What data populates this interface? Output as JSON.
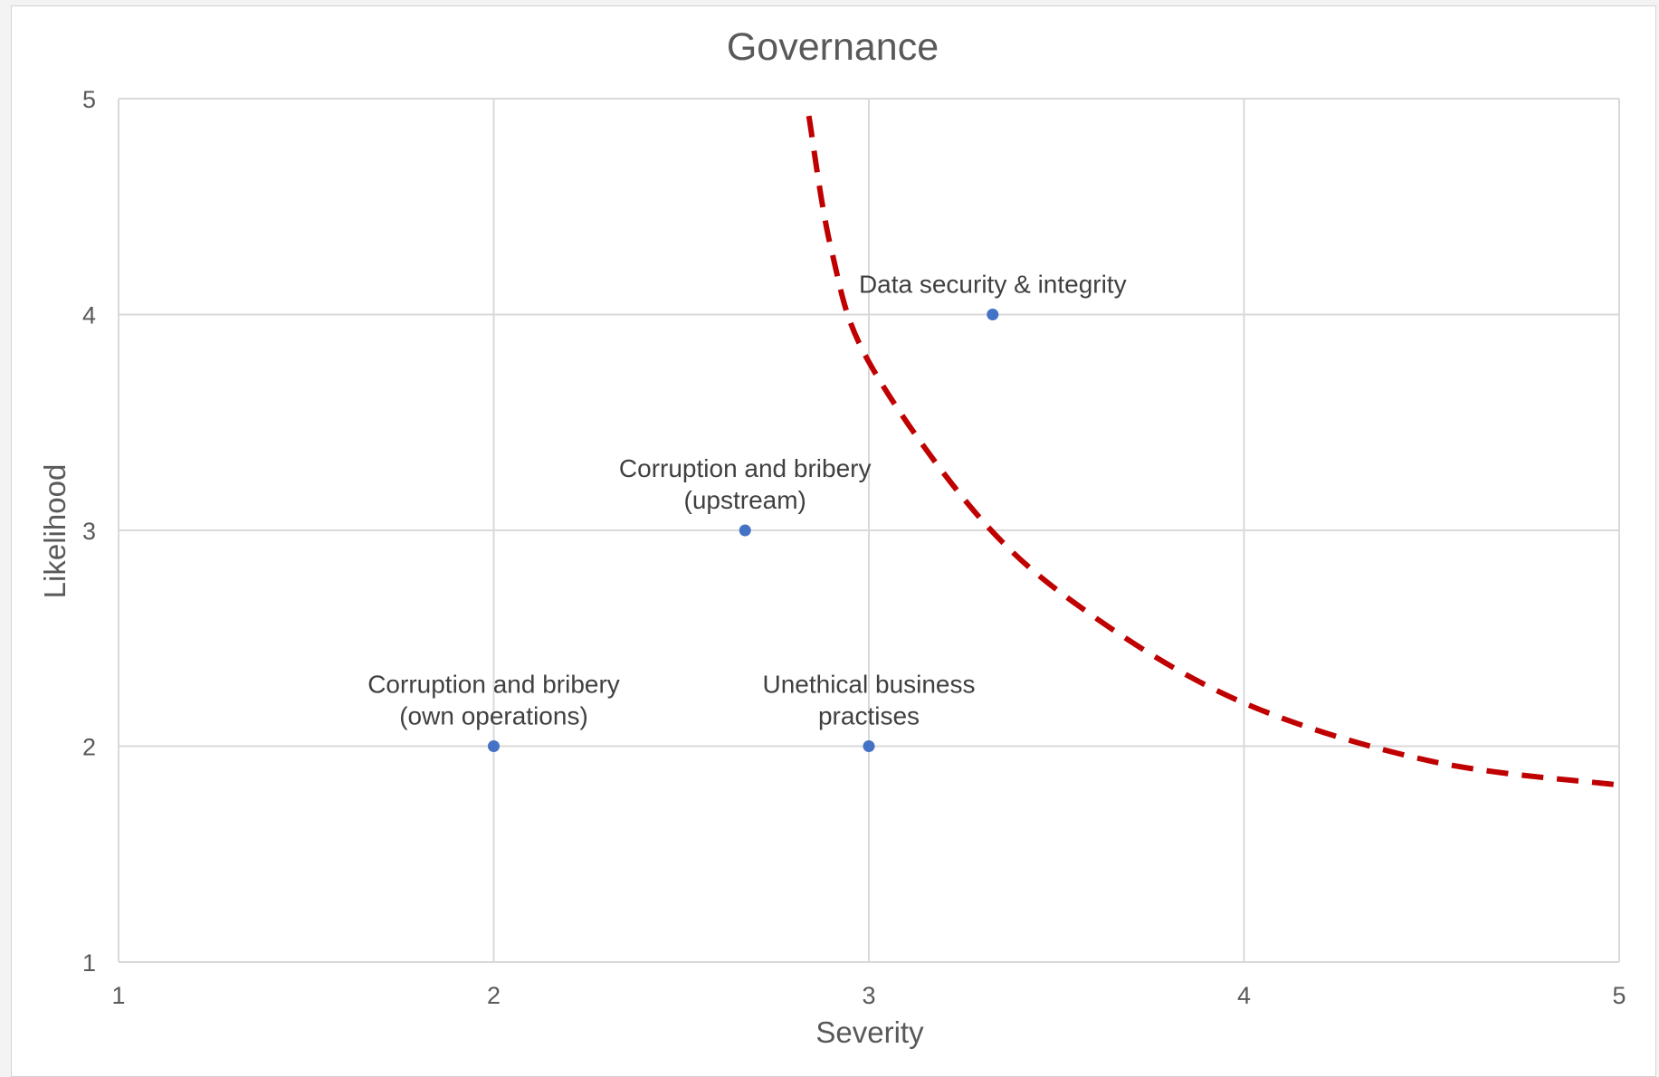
{
  "chart_data": {
    "type": "scatter",
    "title": "Governance",
    "xlabel": "Severity",
    "ylabel": "Likelihood",
    "xlim": [
      1,
      5
    ],
    "ylim": [
      1,
      5
    ],
    "xticks": [
      "1",
      "2",
      "3",
      "4",
      "5"
    ],
    "yticks": [
      "1",
      "2",
      "3",
      "4",
      "5"
    ],
    "grid": true,
    "points": [
      {
        "label_lines": [
          "Data security & integrity"
        ],
        "x": 3.33,
        "y": 4
      },
      {
        "label_lines": [
          "Corruption and bribery",
          "(upstream)"
        ],
        "x": 2.67,
        "y": 3
      },
      {
        "label_lines": [
          "Corruption and bribery",
          "(own operations)"
        ],
        "x": 2,
        "y": 2
      },
      {
        "label_lines": [
          "Unethical business",
          "practises"
        ],
        "x": 3,
        "y": 2
      }
    ],
    "threshold_curve": {
      "style": "dashed",
      "points": [
        [
          2.84,
          4.92
        ],
        [
          2.9,
          4.3
        ],
        [
          3.0,
          3.78
        ],
        [
          3.3,
          3.05
        ],
        [
          3.6,
          2.6
        ],
        [
          4.0,
          2.2
        ],
        [
          4.5,
          1.93
        ],
        [
          5.0,
          1.82
        ]
      ]
    },
    "colors": {
      "point": "#4472c4",
      "curve": "#c00000",
      "grid": "#d9d9d9",
      "text": "#595959"
    }
  }
}
